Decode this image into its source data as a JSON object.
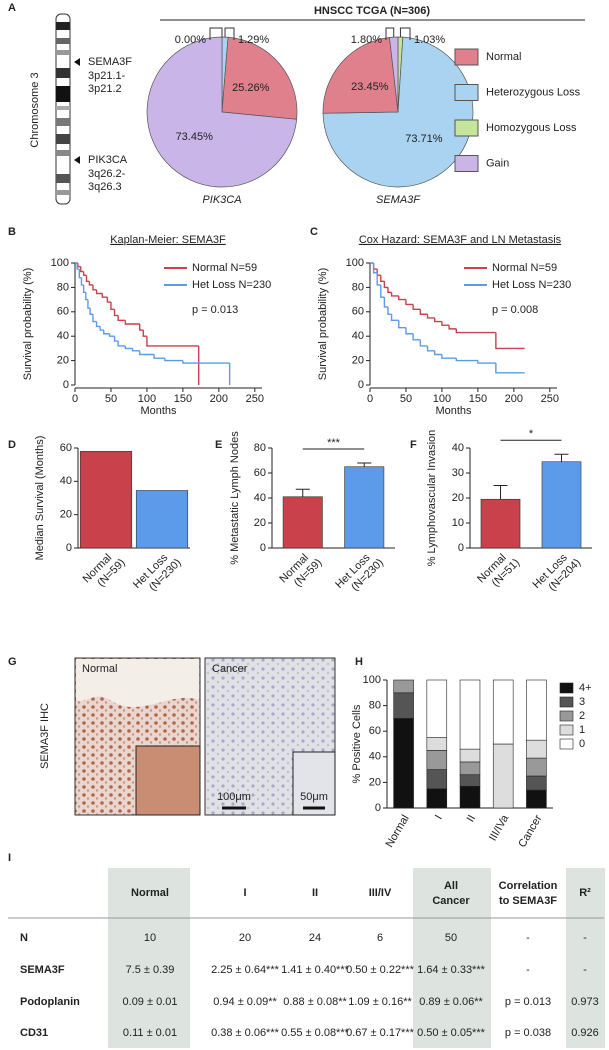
{
  "panel_labels": [
    "A",
    "B",
    "C",
    "D",
    "E",
    "F",
    "G",
    "H",
    "I"
  ],
  "chromosome": {
    "label": "Chromosome 3",
    "genes": [
      {
        "name": "SEMA3F",
        "band": [
          "3p21.1-",
          "3p21.2"
        ]
      },
      {
        "name": "PIK3CA",
        "band": [
          "3q26.2-",
          "3q26.3"
        ]
      }
    ]
  },
  "chart_data": [
    {
      "type": "pie",
      "title": "HNSCC TCGA (N=306)",
      "categories": [
        "Normal",
        "Heterozygous Loss",
        "Homozygous Loss",
        "Gain"
      ],
      "colors": [
        "#e0808c",
        "#a9d3f1",
        "#c6e59b",
        "#c9b5e8"
      ],
      "pies": [
        {
          "name": "PIK3CA",
          "values": [
            25.26,
            1.29,
            0.0,
            73.45
          ],
          "value_labels": [
            "25.26%",
            "1.29%",
            "0.00%",
            "73.45%"
          ]
        },
        {
          "name": "SEMA3F",
          "values": [
            23.45,
            73.71,
            1.03,
            1.8
          ],
          "value_labels": [
            "23.45%",
            "73.71%",
            "1.03%",
            "1.80%"
          ]
        }
      ]
    },
    {
      "type": "step",
      "title": "Kaplan-Meier: SEMA3F",
      "xlabel": "Months",
      "ylabel": "Survival probability (%)",
      "xlim": [
        0,
        260
      ],
      "xticks": [
        0,
        50,
        100,
        150,
        200,
        250
      ],
      "ylim": [
        0,
        100
      ],
      "yticks": [
        0,
        20,
        40,
        60,
        80,
        100
      ],
      "annotation": "p = 0.013",
      "series": [
        {
          "name": "Normal N=59",
          "color": "#c8414b",
          "x": [
            0,
            4,
            8,
            12,
            16,
            20,
            25,
            30,
            38,
            45,
            50,
            55,
            60,
            70,
            90,
            95,
            100,
            172
          ],
          "values": [
            100,
            97,
            93,
            90,
            85,
            82,
            78,
            75,
            72,
            68,
            62,
            57,
            53,
            50,
            45,
            40,
            32,
            0
          ]
        },
        {
          "name": "Het Loss N=230",
          "color": "#5b9bea",
          "x": [
            0,
            3,
            6,
            9,
            12,
            15,
            18,
            21,
            25,
            30,
            35,
            40,
            48,
            55,
            60,
            70,
            80,
            90,
            110,
            125,
            150,
            215
          ],
          "values": [
            100,
            95,
            88,
            82,
            76,
            70,
            63,
            58,
            52,
            48,
            45,
            42,
            40,
            36,
            32,
            30,
            28,
            25,
            22,
            20,
            18,
            0
          ]
        }
      ]
    },
    {
      "type": "step",
      "title": "Cox Hazard: SEMA3F and LN Metastasis",
      "xlabel": "Months",
      "ylabel": "Survival probability (%)",
      "xlim": [
        0,
        260
      ],
      "xticks": [
        0,
        50,
        100,
        150,
        200,
        250
      ],
      "ylim": [
        0,
        100
      ],
      "yticks": [
        0,
        20,
        40,
        60,
        80,
        100
      ],
      "annotation": "p = 0.008",
      "series": [
        {
          "name": "Normal N=59",
          "color": "#c8414b",
          "x": [
            0,
            5,
            10,
            15,
            20,
            25,
            30,
            40,
            50,
            60,
            70,
            80,
            90,
            100,
            110,
            120,
            150,
            175,
            215
          ],
          "values": [
            100,
            95,
            90,
            85,
            80,
            76,
            73,
            70,
            66,
            62,
            58,
            55,
            52,
            49,
            46,
            43,
            43,
            30,
            30
          ]
        },
        {
          "name": "Het Loss N=230",
          "color": "#5b9bea",
          "x": [
            0,
            5,
            10,
            15,
            20,
            25,
            30,
            40,
            50,
            60,
            70,
            80,
            90,
            100,
            120,
            150,
            175,
            215
          ],
          "values": [
            100,
            92,
            82,
            72,
            64,
            58,
            53,
            47,
            42,
            37,
            32,
            28,
            25,
            22,
            20,
            18,
            10,
            10
          ]
        }
      ]
    },
    {
      "type": "bar",
      "ylabel": "Median Survival (Months)",
      "categories": [
        [
          "Normal",
          "(N=59)"
        ],
        [
          "Het Loss",
          "(N=230)"
        ]
      ],
      "values": [
        58,
        34.5
      ],
      "colors": [
        "#c8414b",
        "#5b9bea"
      ],
      "ylim": [
        0,
        60
      ],
      "yticks": [
        0,
        20,
        40,
        60
      ]
    },
    {
      "type": "bar",
      "ylabel": "% Metastatic Lymph Nodes",
      "categories": [
        [
          "Normal",
          "(N=59)"
        ],
        [
          "Het Loss",
          "(N=230)"
        ]
      ],
      "values": [
        41,
        65
      ],
      "errors": [
        6,
        3
      ],
      "significance": "***",
      "colors": [
        "#c8414b",
        "#5b9bea"
      ],
      "ylim": [
        0,
        80
      ],
      "yticks": [
        0,
        20,
        40,
        60,
        80
      ]
    },
    {
      "type": "bar",
      "ylabel": "% Lymphovascular Invasion",
      "categories": [
        [
          "Normal",
          "(N=51)"
        ],
        [
          "Het Loss",
          "(N=204)"
        ]
      ],
      "values": [
        19.5,
        34.5
      ],
      "errors": [
        5.5,
        3
      ],
      "significance": "*",
      "colors": [
        "#c8414b",
        "#5b9bea"
      ],
      "ylim": [
        0,
        40
      ],
      "yticks": [
        0,
        10,
        20,
        30,
        40
      ]
    },
    {
      "type": "stacked_bar",
      "ylabel": "% Positive Cells",
      "categories": [
        "Normal",
        "I",
        "II",
        "III/IVa",
        "Cancer"
      ],
      "ylim": [
        0,
        100
      ],
      "yticks": [
        0,
        20,
        40,
        60,
        80,
        100
      ],
      "series": [
        {
          "name": "4+",
          "color": "#111111",
          "values": [
            70,
            15,
            17,
            0,
            14
          ]
        },
        {
          "name": "3",
          "color": "#555555",
          "values": [
            20,
            15,
            9,
            0,
            11
          ]
        },
        {
          "name": "2",
          "color": "#999999",
          "values": [
            10,
            15,
            10,
            0,
            14
          ]
        },
        {
          "name": "1",
          "color": "#dddddd",
          "values": [
            0,
            10,
            10,
            50,
            14
          ]
        },
        {
          "name": "0",
          "color": "#ffffff",
          "values": [
            0,
            45,
            54,
            50,
            47
          ]
        }
      ]
    }
  ],
  "ihc": {
    "ylabel": "SEMA3F IHC",
    "images": [
      "Normal",
      "Cancer"
    ],
    "scale_bars": [
      "100μm",
      "50μm"
    ]
  },
  "table": {
    "header": [
      [
        "Normal"
      ],
      [
        "I"
      ],
      [
        "II"
      ],
      [
        "III/IV"
      ],
      [
        "All",
        "Cancer"
      ],
      [
        "Correlation",
        "to SEMA3F"
      ],
      [
        "R²"
      ]
    ],
    "rows": [
      [
        "N",
        10,
        20,
        24,
        6,
        50,
        "-",
        "-"
      ],
      [
        "SEMA3F",
        "7.5 ± 0.39",
        "2.25 ± 0.64***",
        "1.41 ± 0.40***",
        "0.50 ± 0.22***",
        "1.64 ± 0.33***",
        "-",
        "-"
      ],
      [
        "Podoplanin",
        "0.09 ± 0.01",
        "0.94 ± 0.09**",
        "0.88 ± 0.08**",
        "1.09 ± 0.16**",
        "0.89 ± 0.06**",
        "p = 0.013",
        "0.973"
      ],
      [
        "CD31",
        "0.11 ± 0.01",
        "0.38 ± 0.06***",
        "0.55 ± 0.08***",
        "0.67 ± 0.17***",
        "0.50 ± 0.05***",
        "p = 0.038",
        "0.926"
      ]
    ]
  }
}
